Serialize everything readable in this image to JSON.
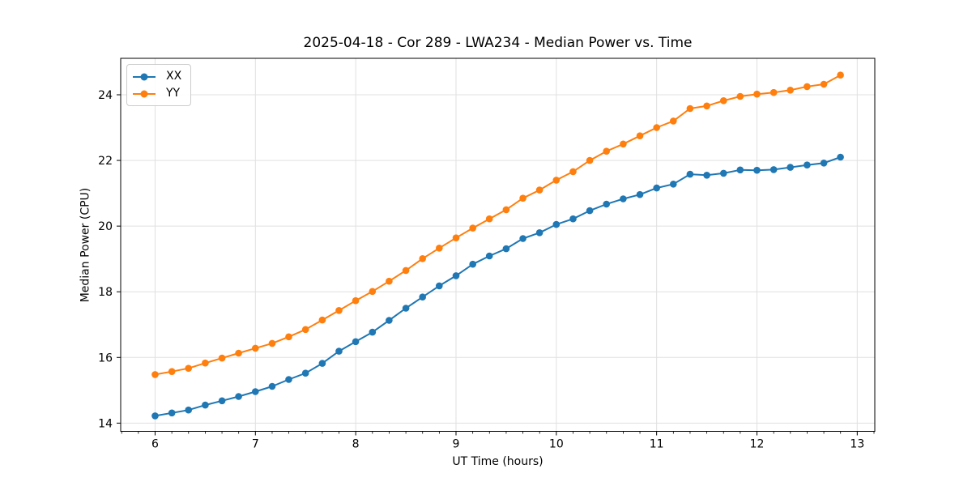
{
  "chart_data": {
    "type": "line",
    "title": "2025-04-18 - Cor 289 - LWA234 - Median Power vs. Time",
    "xlabel": "UT Time (hours)",
    "ylabel": "Median Power (CPU)",
    "xlim": [
      5.657,
      13.175
    ],
    "ylim": [
      13.75,
      25.11
    ],
    "x_ticks": [
      6,
      7,
      8,
      9,
      10,
      11,
      12,
      13
    ],
    "y_ticks": [
      14,
      16,
      18,
      20,
      22,
      24
    ],
    "x_minor_step": 0.16667,
    "grid": "major-only",
    "grid_color": "#e0e0e0",
    "axis_color": "#000000",
    "background_color": "#ffffff",
    "legend_position": "upper-left",
    "x": [
      6.0,
      6.167,
      6.333,
      6.5,
      6.667,
      6.833,
      7.0,
      7.167,
      7.333,
      7.5,
      7.667,
      7.833,
      8.0,
      8.167,
      8.333,
      8.5,
      8.667,
      8.833,
      9.0,
      9.167,
      9.333,
      9.5,
      9.667,
      9.833,
      10.0,
      10.167,
      10.333,
      10.5,
      10.667,
      10.833,
      11.0,
      11.167,
      11.333,
      11.5,
      11.667,
      11.833,
      12.0,
      12.167,
      12.333,
      12.5,
      12.667,
      12.833
    ],
    "series": [
      {
        "name": "XX",
        "color": "#1f77b4",
        "marker": "circle",
        "values": [
          14.22,
          14.31,
          14.4,
          14.55,
          14.68,
          14.81,
          14.96,
          15.12,
          15.33,
          15.52,
          15.82,
          16.19,
          16.48,
          16.77,
          17.13,
          17.5,
          17.84,
          18.18,
          18.49,
          18.84,
          19.09,
          19.31,
          19.62,
          19.8,
          20.05,
          20.22,
          20.47,
          20.67,
          20.83,
          20.96,
          21.16,
          21.28,
          21.58,
          21.55,
          21.61,
          21.71,
          21.7,
          21.72,
          21.79,
          21.86,
          21.92,
          22.1
        ]
      },
      {
        "name": "YY",
        "color": "#ff7f0e",
        "marker": "circle",
        "values": [
          15.48,
          15.57,
          15.67,
          15.83,
          15.98,
          16.13,
          16.28,
          16.43,
          16.63,
          16.85,
          17.14,
          17.43,
          17.73,
          18.01,
          18.32,
          18.65,
          19.01,
          19.33,
          19.64,
          19.94,
          20.22,
          20.5,
          20.85,
          21.1,
          21.4,
          21.66,
          22.0,
          22.28,
          22.5,
          22.75,
          23.0,
          23.2,
          23.58,
          23.66,
          23.82,
          23.95,
          24.02,
          24.07,
          24.14,
          24.25,
          24.32,
          24.6
        ]
      }
    ]
  }
}
